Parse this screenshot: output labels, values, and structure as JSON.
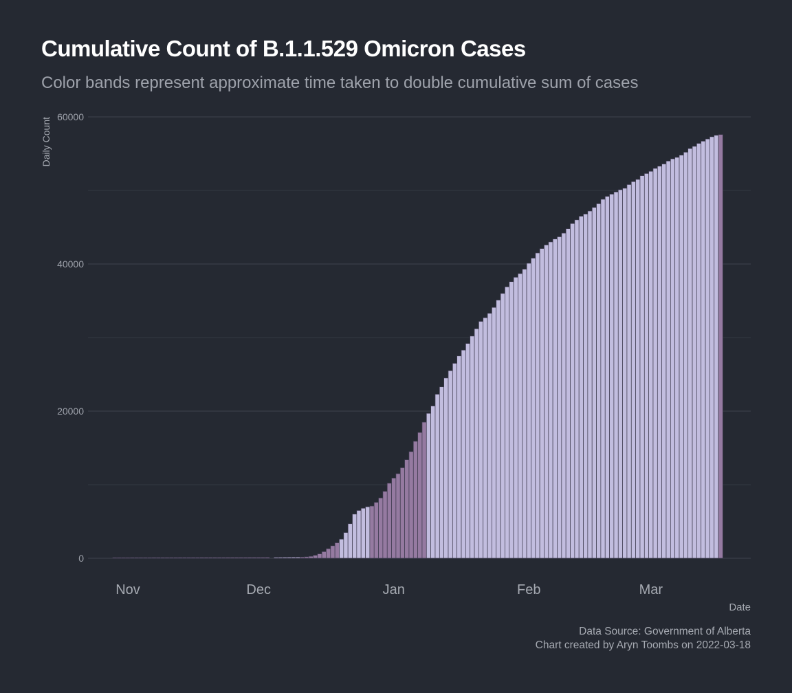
{
  "title": "Cumulative Count of B.1.1.529 Omicron Cases",
  "subtitle": "Color bands represent approximate time taken to double cumulative sum of cases",
  "caption": {
    "source": "Data Source: Government of Alberta",
    "credit": "Chart created by Aryn Toombs on 2022-03-18"
  },
  "colors": {
    "background": "#252932",
    "grid": "#3a3f4a",
    "band_dark": "#957aa1",
    "band_light": "#c2bddf",
    "bar_outline": "#3d3a4e"
  },
  "chart_data": {
    "type": "bar",
    "xlabel": "Date",
    "ylabel": "Daily Count",
    "ylim": [
      0,
      60000
    ],
    "yticks": [
      0,
      20000,
      40000,
      60000
    ],
    "xticks": [
      {
        "label": "Nov",
        "date": "2021-11-01"
      },
      {
        "label": "Dec",
        "date": "2021-12-01"
      },
      {
        "label": "Jan",
        "date": "2022-01-01"
      },
      {
        "label": "Feb",
        "date": "2022-02-01"
      },
      {
        "label": "Mar",
        "date": "2022-03-01"
      }
    ],
    "grid": true,
    "legend": "none",
    "series": [
      {
        "date": "2021-10-29",
        "end": "2021-12-04",
        "band": "dark",
        "values": [
          90,
          90,
          90,
          90,
          95,
          95,
          95,
          95,
          95,
          100,
          100,
          100,
          100,
          100,
          100,
          105,
          105,
          105,
          105,
          105,
          110,
          110,
          110,
          110,
          110,
          110,
          115,
          115,
          115,
          115,
          115,
          120,
          120,
          120,
          120,
          125
        ]
      },
      {
        "date": "2021-12-05",
        "end": "2021-12-10",
        "band": "light",
        "values": [
          130,
          135,
          140,
          145,
          150,
          155
        ]
      },
      {
        "date": "2021-12-11",
        "end": "2021-12-19",
        "band": "dark",
        "values": [
          160,
          200,
          260,
          400,
          600,
          900,
          1300,
          1700,
          2100
        ]
      },
      {
        "date": "2021-12-20",
        "end": "2021-12-26",
        "band": "light",
        "values": [
          2600,
          3500,
          4700,
          6000,
          6500,
          6800,
          7000
        ]
      },
      {
        "date": "2021-12-27",
        "end": "2022-01-08",
        "band": "dark",
        "values": [
          7100,
          7600,
          8200,
          9100,
          10200,
          10900,
          11500,
          12300,
          13400,
          14500,
          15900,
          17100,
          18500
        ]
      },
      {
        "date": "2022-01-09",
        "end": "2022-03-16",
        "band": "light",
        "values": [
          19700,
          20700,
          22300,
          23300,
          24500,
          25500,
          26500,
          27500,
          28300,
          29200,
          30200,
          31200,
          32200,
          32700,
          33300,
          34100,
          35100,
          36000,
          36900,
          37600,
          38200,
          38700,
          39300,
          40100,
          40800,
          41500,
          42100,
          42600,
          43000,
          43400,
          43700,
          44200,
          44800,
          45500,
          46000,
          46500,
          46800,
          47200,
          47700,
          48200,
          48800,
          49200,
          49500,
          49800,
          50100,
          50300,
          50800,
          51200,
          51500,
          52000,
          52300,
          52600,
          53000,
          53300,
          53600,
          54000,
          54300,
          54500,
          54800,
          55200,
          55700,
          56000,
          56400,
          56700,
          57000,
          57300,
          57500
        ]
      },
      {
        "date": "2022-03-17",
        "end": "2022-03-17",
        "band": "dark",
        "values": [
          57600
        ]
      }
    ]
  }
}
